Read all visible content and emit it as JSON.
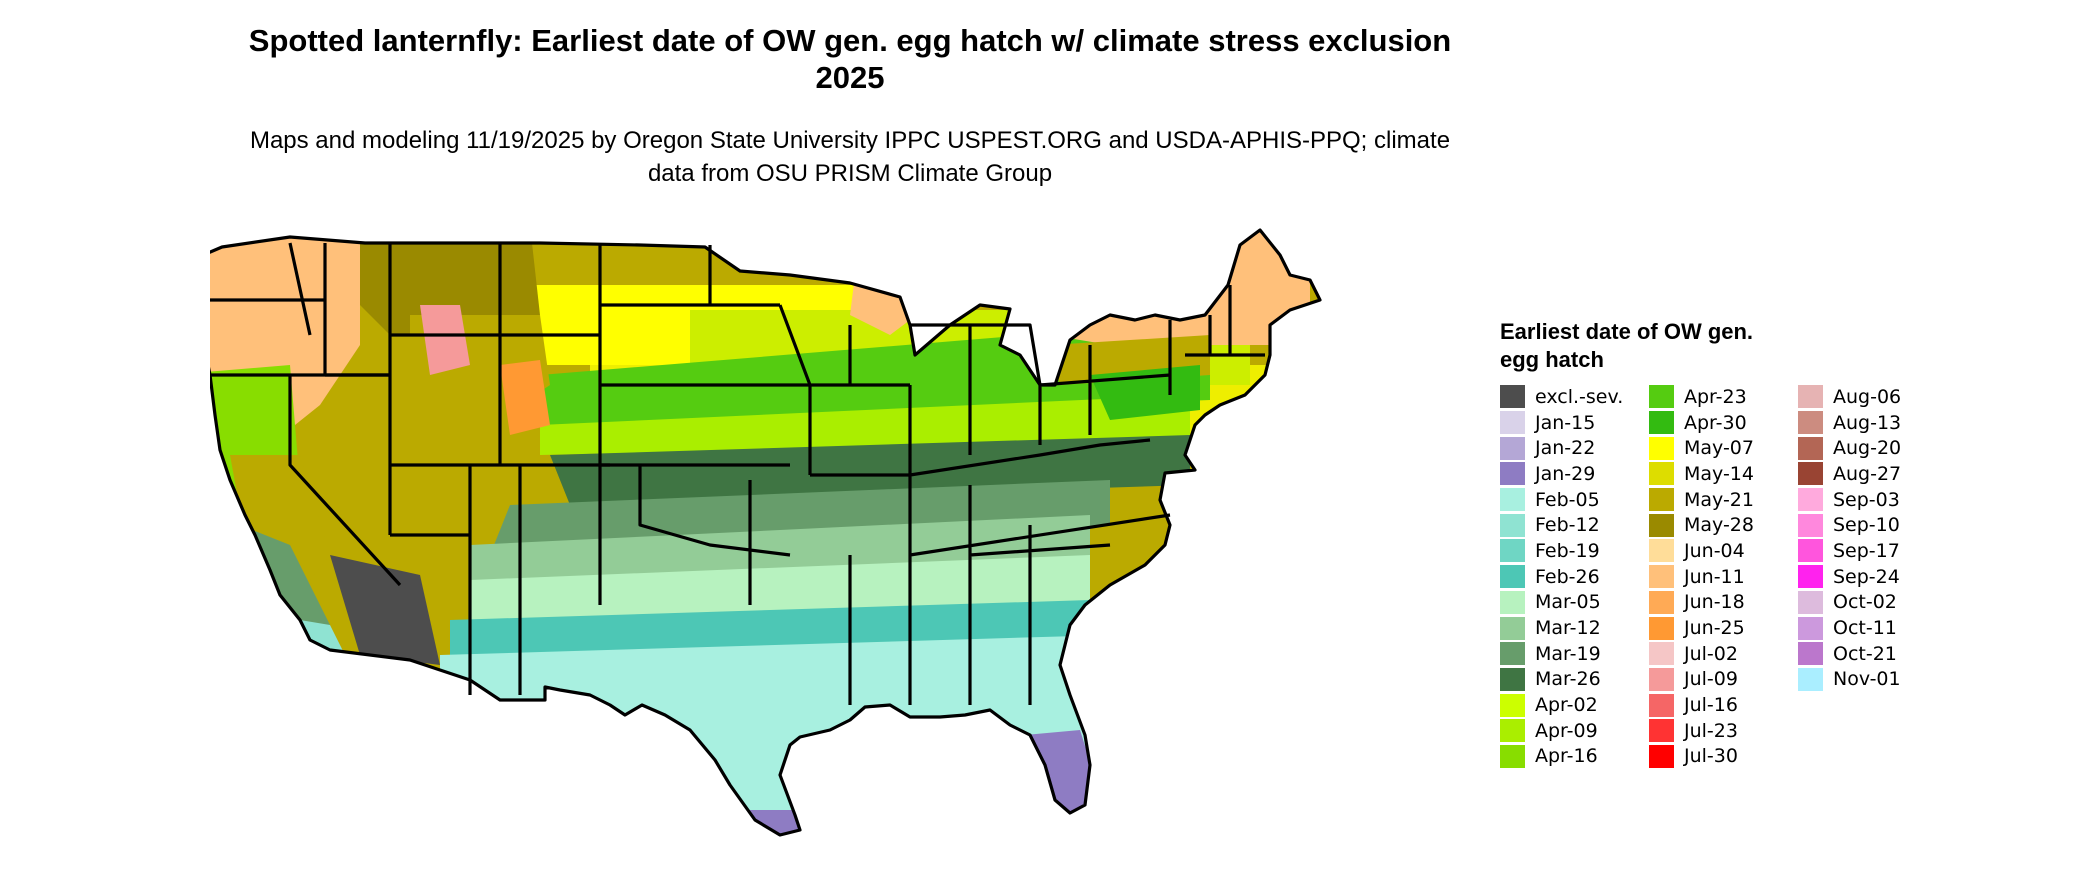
{
  "title": "Spotted lanternfly: Earliest date of OW gen. egg hatch w/ climate stress exclusion 2025",
  "subtitle": "Maps and modeling 11/19/2025 by Oregon State University IPPC USPEST.ORG and USDA-APHIS-PPQ; climate data from OSU PRISM Climate Group",
  "legend": {
    "title": "Earliest date of OW gen. egg hatch",
    "columns": [
      [
        {
          "label": "excl.-sev.",
          "color": "#4d4d4d"
        },
        {
          "label": "Jan-15",
          "color": "#d9d2e9"
        },
        {
          "label": "Jan-22",
          "color": "#b4a7d6"
        },
        {
          "label": "Jan-29",
          "color": "#8e7cc3"
        },
        {
          "label": "Feb-05",
          "color": "#a8f0e0"
        },
        {
          "label": "Feb-12",
          "color": "#8fe3d2"
        },
        {
          "label": "Feb-19",
          "color": "#6fd6c4"
        },
        {
          "label": "Feb-26",
          "color": "#4dc7b5"
        },
        {
          "label": "Mar-05",
          "color": "#b7f2bf"
        },
        {
          "label": "Mar-12",
          "color": "#93cc97"
        },
        {
          "label": "Mar-19",
          "color": "#679d6b"
        },
        {
          "label": "Mar-26",
          "color": "#3f7543"
        },
        {
          "label": "Apr-02",
          "color": "#ccff00"
        },
        {
          "label": "Apr-09",
          "color": "#aaee00"
        },
        {
          "label": "Apr-16",
          "color": "#88dd00"
        }
      ],
      [
        {
          "label": "Apr-23",
          "color": "#55cc11"
        },
        {
          "label": "Apr-30",
          "color": "#33bb11"
        },
        {
          "label": "May-07",
          "color": "#ffff00"
        },
        {
          "label": "May-14",
          "color": "#dddd00"
        },
        {
          "label": "May-21",
          "color": "#bbaa00"
        },
        {
          "label": "May-28",
          "color": "#9a8a00"
        },
        {
          "label": "Jun-04",
          "color": "#ffdd99"
        },
        {
          "label": "Jun-11",
          "color": "#ffc07a"
        },
        {
          "label": "Jun-18",
          "color": "#ffaa55"
        },
        {
          "label": "Jun-25",
          "color": "#ff9933"
        },
        {
          "label": "Jul-02",
          "color": "#f5c6c6"
        },
        {
          "label": "Jul-09",
          "color": "#f59a9a"
        },
        {
          "label": "Jul-16",
          "color": "#f56666"
        },
        {
          "label": "Jul-23",
          "color": "#ff3333"
        },
        {
          "label": "Jul-30",
          "color": "#ff0000"
        }
      ],
      [
        {
          "label": "Aug-06",
          "color": "#e6b3b3"
        },
        {
          "label": "Aug-13",
          "color": "#cc8c80"
        },
        {
          "label": "Aug-20",
          "color": "#b36655"
        },
        {
          "label": "Aug-27",
          "color": "#994433"
        },
        {
          "label": "Sep-03",
          "color": "#ffaadd"
        },
        {
          "label": "Sep-10",
          "color": "#ff88dd"
        },
        {
          "label": "Sep-17",
          "color": "#ff55dd"
        },
        {
          "label": "Sep-24",
          "color": "#ff22ee"
        },
        {
          "label": "Oct-02",
          "color": "#ddbbdd"
        },
        {
          "label": "Oct-11",
          "color": "#cc99dd"
        },
        {
          "label": "Oct-21",
          "color": "#bb77cc"
        },
        {
          "label": "Nov-01",
          "color": "#aaeeff"
        }
      ]
    ]
  },
  "map": {
    "bands": [
      {
        "name": "northern-band",
        "date": "May-21"
      },
      {
        "name": "plains-band",
        "date": "May-07"
      },
      {
        "name": "central-band",
        "date": "Apr-30"
      },
      {
        "name": "upper-south-band",
        "date": "Apr-02"
      },
      {
        "name": "mid-south-band",
        "date": "Mar-26"
      },
      {
        "name": "gulf-band",
        "date": "Mar-12"
      },
      {
        "name": "coastal-band",
        "date": "Feb-19"
      },
      {
        "name": "florida-band",
        "date": "Jan-29"
      }
    ]
  }
}
